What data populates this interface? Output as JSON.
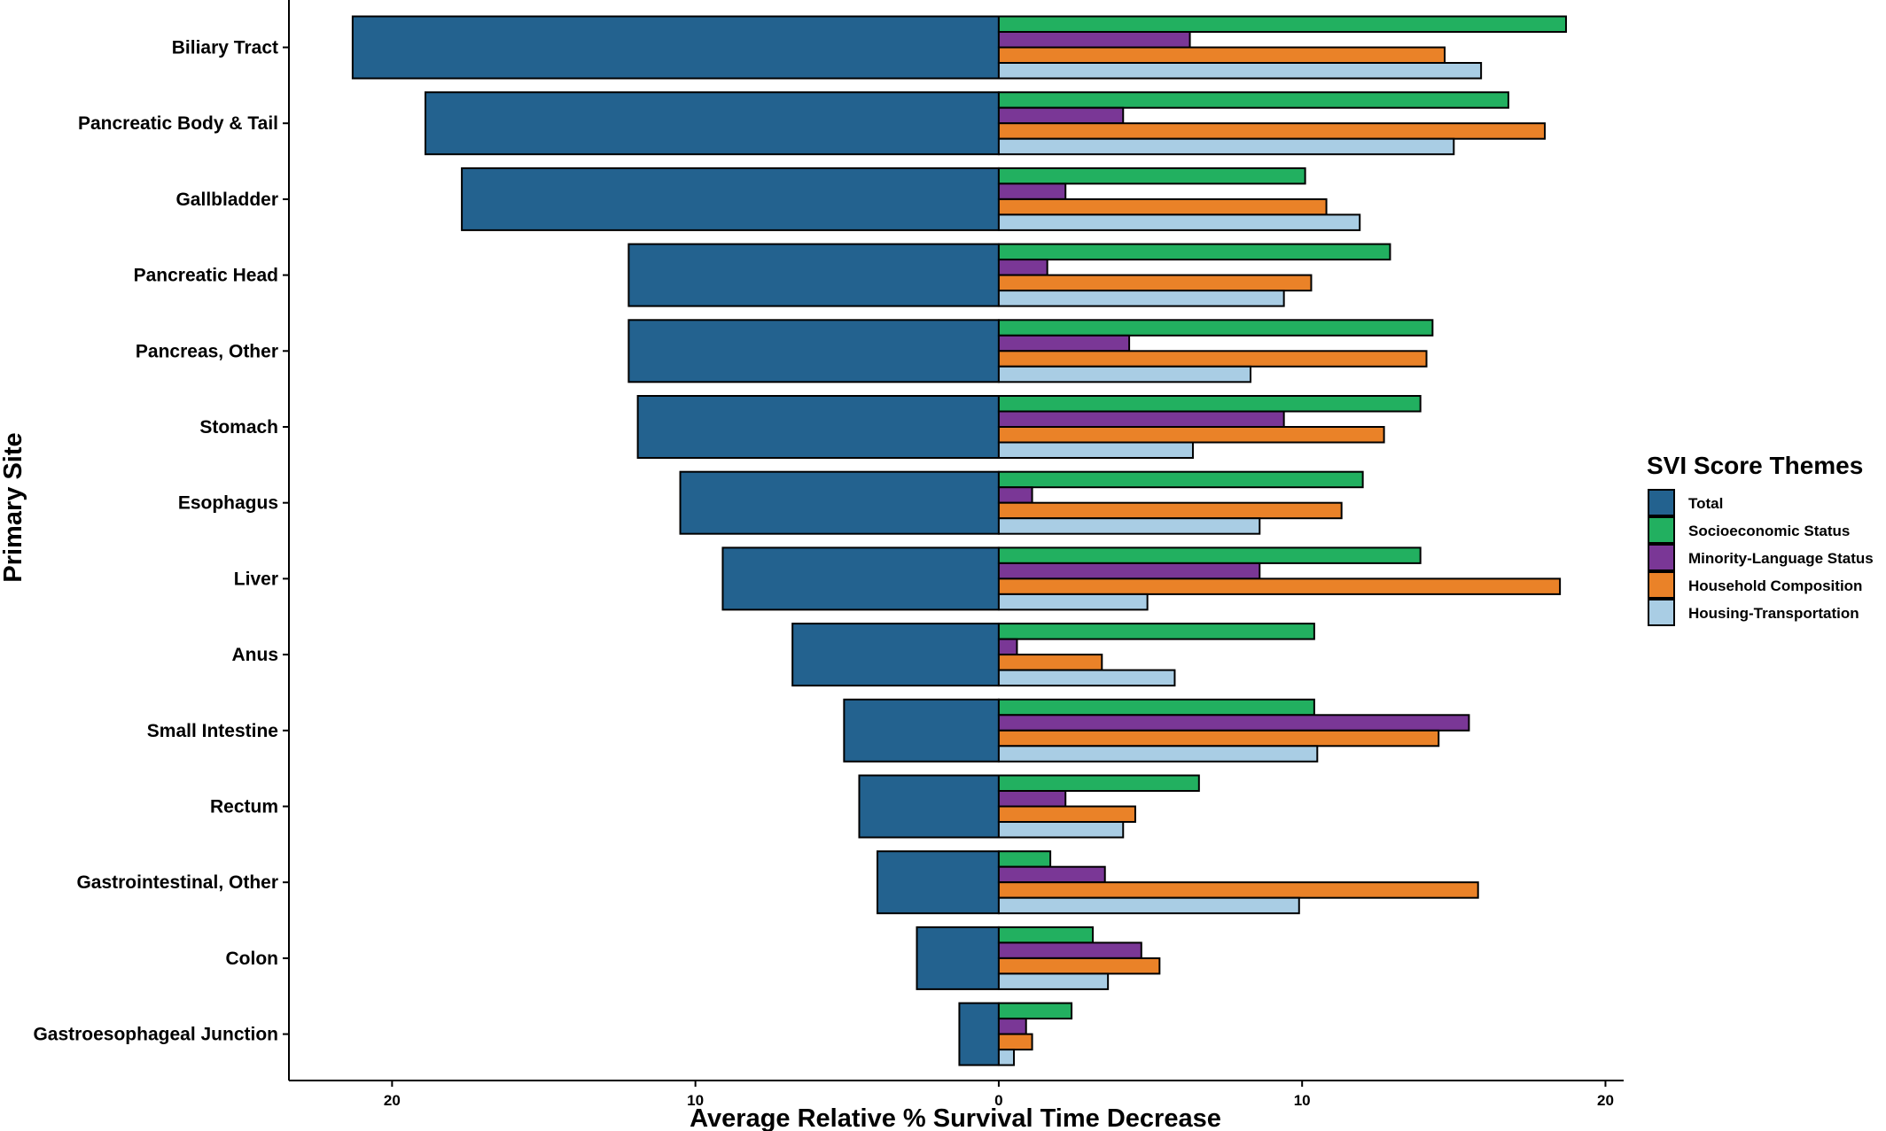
{
  "chart_data": {
    "type": "bar",
    "orientation": "horizontal",
    "xlabel": "Average Relative % Survival Time Decrease",
    "ylabel": "Primary Site",
    "xticks": [
      20,
      10,
      0,
      10,
      20
    ],
    "legend_title": "SVI Score Themes",
    "legend_position": "right",
    "categories": [
      "Biliary Tract",
      "Pancreatic Body & Tail",
      "Gallbladder",
      "Pancreatic Head",
      "Pancreas, Other",
      "Stomach",
      "Esophagus",
      "Liver",
      "Anus",
      "Small Intestine",
      "Rectum",
      "Gastrointestinal, Other",
      "Colon",
      "Gastroesophageal Junction"
    ],
    "series": [
      {
        "name": "Total",
        "color": "#23628f",
        "values": [
          -21.3,
          -18.9,
          -17.7,
          -12.2,
          -12.2,
          -11.9,
          -10.5,
          -9.1,
          -6.8,
          -5.1,
          -4.6,
          -4.0,
          -2.7,
          -1.3
        ]
      },
      {
        "name": "Socioeconomic Status",
        "color": "#22b060",
        "values": [
          18.7,
          16.8,
          10.1,
          12.9,
          14.3,
          13.9,
          12.0,
          13.9,
          10.4,
          10.4,
          6.6,
          1.7,
          3.1,
          2.4
        ]
      },
      {
        "name": "Minority-Language Status",
        "color": "#7a3796",
        "values": [
          6.3,
          4.1,
          2.2,
          1.6,
          4.3,
          9.4,
          1.1,
          8.6,
          0.6,
          15.5,
          2.2,
          3.5,
          4.7,
          0.9
        ]
      },
      {
        "name": "Household Composition",
        "color": "#ea8228",
        "values": [
          14.7,
          18.0,
          10.8,
          10.3,
          14.1,
          12.7,
          11.3,
          18.5,
          3.4,
          14.5,
          4.5,
          15.8,
          5.3,
          1.1
        ]
      },
      {
        "name": "Housing-Transportation",
        "color": "#a9cde4",
        "values": [
          15.9,
          15.0,
          11.9,
          9.4,
          8.3,
          6.4,
          8.6,
          4.9,
          5.8,
          10.5,
          4.1,
          9.9,
          3.6,
          0.5
        ]
      }
    ],
    "xlim": [
      -23.4,
      20.6
    ],
    "grid": false
  }
}
